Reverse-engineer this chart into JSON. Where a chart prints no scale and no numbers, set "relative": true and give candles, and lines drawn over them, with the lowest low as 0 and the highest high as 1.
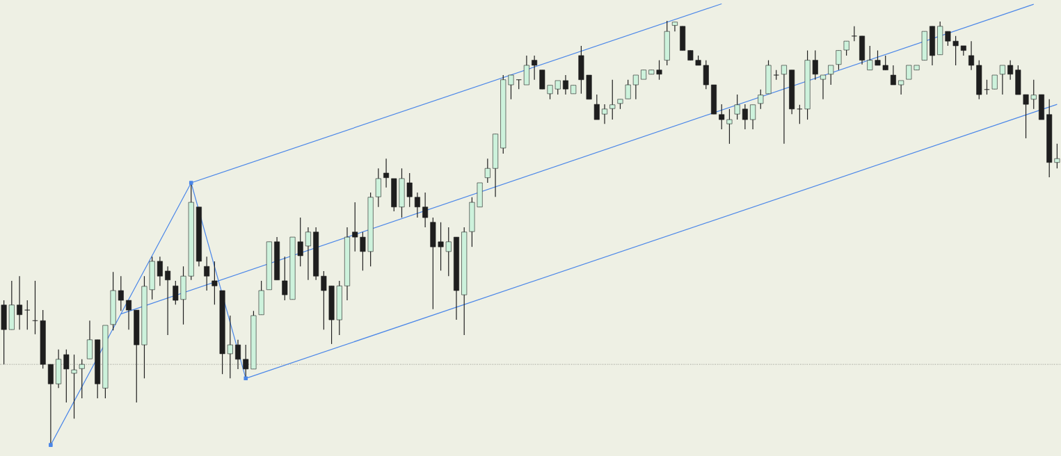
{
  "chart_data": {
    "type": "candlestick",
    "relative": true,
    "categories": [
      null,
      null,
      null,
      null,
      null,
      null,
      null,
      null,
      null,
      null,
      null,
      null,
      null,
      null,
      null,
      null,
      null,
      null,
      null,
      null,
      null,
      null,
      null,
      null,
      null,
      null,
      null,
      null,
      null,
      null,
      null,
      null,
      null,
      null,
      null,
      null,
      null,
      null,
      null,
      null,
      null,
      null,
      null,
      null,
      null,
      null,
      null,
      null,
      null,
      null,
      null,
      null,
      null,
      null,
      null,
      null,
      null,
      null,
      null,
      null,
      null,
      null,
      null,
      null,
      null,
      null,
      null,
      null,
      null,
      null,
      null,
      null,
      null,
      null,
      null,
      null,
      null,
      null,
      null,
      null,
      null,
      null,
      null,
      null,
      null,
      null,
      null,
      null,
      null,
      null,
      null,
      null,
      null,
      null,
      null,
      null,
      null,
      null,
      null,
      null,
      null,
      null,
      null,
      null,
      null,
      null,
      null,
      null,
      null,
      null,
      null,
      null,
      null,
      null,
      null,
      null,
      null,
      null,
      null,
      null,
      null,
      null,
      null,
      null,
      null,
      null,
      null,
      null,
      null,
      null,
      null,
      null,
      null,
      null,
      null,
      null
    ],
    "ohlc": [
      [
        0.33,
        0.341,
        0.19,
        0.272
      ],
      [
        0.272,
        0.387,
        0.272,
        0.33
      ],
      [
        0.33,
        0.398,
        0.272,
        0.307
      ],
      [
        0.318,
        0.341,
        0.272,
        0.318
      ],
      [
        0.293,
        0.387,
        0.261,
        0.293
      ],
      [
        0.293,
        0.318,
        0.18,
        0.19
      ],
      [
        0.19,
        0.19,
        0,
        0.144
      ],
      [
        0.144,
        0.225,
        0.134,
        0.202
      ],
      [
        0.213,
        0.225,
        0.1,
        0.179
      ],
      [
        0.169,
        0.213,
        0.062,
        0.177
      ],
      [
        0.18,
        0.202,
        0.11,
        0.19
      ],
      [
        0.203,
        0.293,
        0.203,
        0.248
      ],
      [
        0.248,
        0.248,
        0.11,
        0.144
      ],
      [
        0.134,
        0.282,
        0.11,
        0.282
      ],
      [
        0.284,
        0.408,
        0.27,
        0.364
      ],
      [
        0.364,
        0.398,
        0.316,
        0.341
      ],
      [
        0.341,
        0.341,
        0.272,
        0.318
      ],
      [
        0.318,
        0.318,
        0.1,
        0.236
      ],
      [
        0.236,
        0.398,
        0.157,
        0.374
      ],
      [
        0.366,
        0.444,
        0.343,
        0.433
      ],
      [
        0.433,
        0.444,
        0.375,
        0.398
      ],
      [
        0.41,
        0.421,
        0.259,
        0.389
      ],
      [
        0.375,
        0.387,
        0.331,
        0.341
      ],
      [
        0.343,
        0.421,
        0.284,
        0.398
      ],
      [
        0.398,
        0.618,
        0.389,
        0.572
      ],
      [
        0.561,
        0.561,
        0.421,
        0.433
      ],
      [
        0.421,
        0.444,
        0.364,
        0.398
      ],
      [
        0.387,
        0.433,
        0.331,
        0.375
      ],
      [
        0.364,
        0.364,
        0.167,
        0.215
      ],
      [
        0.215,
        0.305,
        0.157,
        0.236
      ],
      [
        0.236,
        0.248,
        0.179,
        0.202
      ],
      [
        0.202,
        0.236,
        0.157,
        0.179
      ],
      [
        0.179,
        0.316,
        0.179,
        0.305
      ],
      [
        0.307,
        0.387,
        0.307,
        0.364
      ],
      [
        0.366,
        0.479,
        0.366,
        0.479
      ],
      [
        0.479,
        0.49,
        0.389,
        0.389
      ],
      [
        0.387,
        0.444,
        0.341,
        0.354
      ],
      [
        0.343,
        0.49,
        0.343,
        0.49
      ],
      [
        0.479,
        0.536,
        0.421,
        0.446
      ],
      [
        0.469,
        0.513,
        0.389,
        0.502
      ],
      [
        0.502,
        0.513,
        0.389,
        0.398
      ],
      [
        0.398,
        0.41,
        0.272,
        0.364
      ],
      [
        0.375,
        0.375,
        0.238,
        0.295
      ],
      [
        0.295,
        0.387,
        0.259,
        0.375
      ],
      [
        0.375,
        0.513,
        0.341,
        0.49
      ],
      [
        0.502,
        0.572,
        0.456,
        0.49
      ],
      [
        0.49,
        0.502,
        0.411,
        0.456
      ],
      [
        0.456,
        0.595,
        0.421,
        0.584
      ],
      [
        0.585,
        0.652,
        0.561,
        0.628
      ],
      [
        0.641,
        0.675,
        0.607,
        0.63
      ],
      [
        0.628,
        0.628,
        0.551,
        0.561
      ],
      [
        0.561,
        0.652,
        0.536,
        0.628
      ],
      [
        0.618,
        0.641,
        0.561,
        0.585
      ],
      [
        0.584,
        0.595,
        0.536,
        0.561
      ],
      [
        0.561,
        0.595,
        0.513,
        0.536
      ],
      [
        0.525,
        0.536,
        0.32,
        0.467
      ],
      [
        0.479,
        0.525,
        0.411,
        0.467
      ],
      [
        0.456,
        0.513,
        0.398,
        0.479
      ],
      [
        0.49,
        0.49,
        0.295,
        0.364
      ],
      [
        0.354,
        0.513,
        0.259,
        0.502
      ],
      [
        0.503,
        0.584,
        0.467,
        0.572
      ],
      [
        0.561,
        0.618,
        0.561,
        0.618
      ],
      [
        0.63,
        0.675,
        0.618,
        0.652
      ],
      [
        0.652,
        0.733,
        0.585,
        0.733
      ],
      [
        0.7,
        0.872,
        0.687,
        0.861
      ],
      [
        0.849,
        0.872,
        0.815,
        0.872
      ],
      [
        0.861,
        0.861,
        0.839,
        0.861
      ],
      [
        0.849,
        0.918,
        0.849,
        0.895
      ],
      [
        0.907,
        0.918,
        0.861,
        0.895
      ],
      [
        0.884,
        0.884,
        0.839,
        0.839
      ],
      [
        0.828,
        0.848,
        0.815,
        0.848
      ],
      [
        0.839,
        0.859,
        0.826,
        0.859
      ],
      [
        0.859,
        0.872,
        0.826,
        0.839
      ],
      [
        0.828,
        0.848,
        0.828,
        0.848
      ],
      [
        0.918,
        0.941,
        0.828,
        0.861
      ],
      [
        0.872,
        0.872,
        0.815,
        0.815
      ],
      [
        0.803,
        0.826,
        0.767,
        0.767
      ],
      [
        0.78,
        0.803,
        0.757,
        0.792
      ],
      [
        0.793,
        0.861,
        0.767,
        0.802
      ],
      [
        0.805,
        0.815,
        0.792,
        0.815
      ],
      [
        0.816,
        0.861,
        0.816,
        0.849
      ],
      [
        0.849,
        0.872,
        0.815,
        0.872
      ],
      [
        0.862,
        0.884,
        0.862,
        0.884
      ],
      [
        0.874,
        0.884,
        0.874,
        0.884
      ],
      [
        0.884,
        0.907,
        0.861,
        0.874
      ],
      [
        0.907,
        1.0,
        0.895,
        0.975
      ],
      [
        0.989,
        0.997,
        0.975,
        0.997
      ],
      [
        0.987,
        0.987,
        0.93,
        0.93
      ],
      [
        0.93,
        0.93,
        0.907,
        0.907
      ],
      [
        0.907,
        0.918,
        0.895,
        0.895
      ],
      [
        0.895,
        0.907,
        0.839,
        0.849
      ],
      [
        0.849,
        0.849,
        0.78,
        0.78
      ],
      [
        0.779,
        0.803,
        0.744,
        0.767
      ],
      [
        0.757,
        0.792,
        0.71,
        0.767
      ],
      [
        0.78,
        0.826,
        0.767,
        0.802
      ],
      [
        0.792,
        0.803,
        0.744,
        0.767
      ],
      [
        0.767,
        0.802,
        0.744,
        0.802
      ],
      [
        0.805,
        0.838,
        0.792,
        0.825
      ],
      [
        0.828,
        0.907,
        0.828,
        0.895
      ],
      [
        0.872,
        0.884,
        0.861,
        0.872
      ],
      [
        0.874,
        0.895,
        0.71,
        0.895
      ],
      [
        0.884,
        0.884,
        0.78,
        0.792
      ],
      [
        0.792,
        0.802,
        0.757,
        0.792
      ],
      [
        0.792,
        0.93,
        0.767,
        0.907
      ],
      [
        0.907,
        0.93,
        0.861,
        0.874
      ],
      [
        0.862,
        0.872,
        0.815,
        0.872
      ],
      [
        0.874,
        0.895,
        0.849,
        0.895
      ],
      [
        0.897,
        0.93,
        0.884,
        0.93
      ],
      [
        0.931,
        0.952,
        0.918,
        0.952
      ],
      [
        0.964,
        0.987,
        0.952,
        0.964
      ],
      [
        0.964,
        0.964,
        0.897,
        0.907
      ],
      [
        0.884,
        0.941,
        0.884,
        0.907
      ],
      [
        0.907,
        0.93,
        0.895,
        0.895
      ],
      [
        0.895,
        0.918,
        0.884,
        0.884
      ],
      [
        0.872,
        0.895,
        0.849,
        0.849
      ],
      [
        0.849,
        0.859,
        0.826,
        0.859
      ],
      [
        0.862,
        0.895,
        0.862,
        0.895
      ],
      [
        0.884,
        0.895,
        0.884,
        0.895
      ],
      [
        0.907,
        0.975,
        0.907,
        0.975
      ],
      [
        0.987,
        0.987,
        0.895,
        0.918
      ],
      [
        0.92,
        0.998,
        0.92,
        0.987
      ],
      [
        0.975,
        0.975,
        0.941,
        0.952
      ],
      [
        0.952,
        0.964,
        0.895,
        0.941
      ],
      [
        0.941,
        0.941,
        0.918,
        0.93
      ],
      [
        0.918,
        0.952,
        0.884,
        0.895
      ],
      [
        0.895,
        0.907,
        0.815,
        0.826
      ],
      [
        0.838,
        0.861,
        0.826,
        0.838
      ],
      [
        0.839,
        0.872,
        0.839,
        0.872
      ],
      [
        0.874,
        0.895,
        0.826,
        0.895
      ],
      [
        0.895,
        0.907,
        0.861,
        0.874
      ],
      [
        0.884,
        0.895,
        0.826,
        0.826
      ],
      [
        0.826,
        0.826,
        0.723,
        0.803
      ],
      [
        0.815,
        0.861,
        0.792,
        0.825
      ],
      [
        0.826,
        0.826,
        0.767,
        0.767
      ],
      [
        0.779,
        0.815,
        0.631,
        0.666
      ],
      [
        0.666,
        0.71,
        0.652,
        0.675
      ]
    ],
    "colors": [
      "#1e1e1e",
      "#cdf2dc",
      "#1e1e1e",
      "#1e1e1e",
      "#1e1e1e",
      "#1e1e1e",
      "#1e1e1e",
      "#cdf2dc",
      "#1e1e1e",
      "#cdf2dc",
      "#cdf2dc",
      "#cdf2dc",
      "#1e1e1e",
      "#cdf2dc",
      "#cdf2dc",
      "#1e1e1e",
      "#1e1e1e",
      "#1e1e1e",
      "#cdf2dc",
      "#cdf2dc",
      "#1e1e1e",
      "#1e1e1e",
      "#1e1e1e",
      "#cdf2dc",
      "#cdf2dc",
      "#1e1e1e",
      "#1e1e1e",
      "#1e1e1e",
      "#1e1e1e",
      "#cdf2dc",
      "#1e1e1e",
      "#1e1e1e",
      "#cdf2dc",
      "#cdf2dc",
      "#cdf2dc",
      "#1e1e1e",
      "#1e1e1e",
      "#cdf2dc",
      "#1e1e1e",
      "#cdf2dc",
      "#1e1e1e",
      "#1e1e1e",
      "#1e1e1e",
      "#cdf2dc",
      "#cdf2dc",
      "#1e1e1e",
      "#1e1e1e",
      "#cdf2dc",
      "#cdf2dc",
      "#1e1e1e",
      "#1e1e1e",
      "#cdf2dc",
      "#1e1e1e",
      "#1e1e1e",
      "#1e1e1e",
      "#1e1e1e",
      "#1e1e1e",
      "#cdf2dc",
      "#1e1e1e",
      "#cdf2dc",
      "#cdf2dc",
      "#cdf2dc",
      "#cdf2dc",
      "#cdf2dc",
      "#cdf2dc",
      "#cdf2dc",
      "#1e1e1e",
      "#cdf2dc",
      "#1e1e1e",
      "#1e1e1e",
      "#cdf2dc",
      "#cdf2dc",
      "#1e1e1e",
      "#cdf2dc",
      "#1e1e1e",
      "#1e1e1e",
      "#1e1e1e",
      "#cdf2dc",
      "#cdf2dc",
      "#cdf2dc",
      "#cdf2dc",
      "#cdf2dc",
      "#cdf2dc",
      "#cdf2dc",
      "#1e1e1e",
      "#cdf2dc",
      "#cdf2dc",
      "#1e1e1e",
      "#1e1e1e",
      "#1e1e1e",
      "#1e1e1e",
      "#1e1e1e",
      "#1e1e1e",
      "#cdf2dc",
      "#cdf2dc",
      "#1e1e1e",
      "#cdf2dc",
      "#cdf2dc",
      "#cdf2dc",
      "#1e1e1e",
      "#cdf2dc",
      "#1e1e1e",
      "#1e1e1e",
      "#cdf2dc",
      "#1e1e1e",
      "#cdf2dc",
      "#cdf2dc",
      "#cdf2dc",
      "#cdf2dc",
      "#1e1e1e",
      "#1e1e1e",
      "#cdf2dc",
      "#1e1e1e",
      "#1e1e1e",
      "#1e1e1e",
      "#cdf2dc",
      "#cdf2dc",
      "#cdf2dc",
      "#cdf2dc",
      "#1e1e1e",
      "#cdf2dc",
      "#1e1e1e",
      "#1e1e1e",
      "#1e1e1e",
      "#1e1e1e",
      "#1e1e1e",
      "#1e1e1e",
      "#cdf2dc",
      "#cdf2dc",
      "#1e1e1e",
      "#1e1e1e",
      "#1e1e1e",
      "#cdf2dc",
      "#1e1e1e",
      "#1e1e1e",
      "#cdf2dc"
    ],
    "ref_lines": [
      {
        "axis": "y",
        "value": 0.19,
        "color": "#000000",
        "line_style": "dotted"
      }
    ],
    "series": [
      {
        "type": "line",
        "values": [
          null,
          null,
          null,
          null,
          null,
          null,
          0,
          null,
          null,
          null,
          null,
          null,
          null,
          null,
          null,
          null,
          null,
          null,
          null,
          null,
          null,
          null,
          null,
          null,
          0.618,
          null,
          null,
          null,
          null,
          null,
          null,
          0.157,
          null,
          null,
          null,
          null,
          null,
          null,
          null,
          null,
          null,
          null,
          null,
          null,
          null,
          null,
          null,
          null,
          null,
          null,
          null,
          null,
          null,
          null,
          null,
          null,
          null,
          null,
          null,
          null,
          null,
          null,
          null,
          null,
          null,
          null,
          null,
          null,
          null,
          null,
          null,
          null,
          null,
          null,
          null,
          null,
          null,
          null,
          null,
          null,
          null,
          null,
          null,
          null,
          null,
          null,
          null,
          null,
          null,
          null,
          null,
          null,
          null,
          null,
          null,
          null,
          null,
          null,
          null,
          null,
          null,
          null,
          null,
          null,
          null,
          null,
          null,
          null,
          null,
          null,
          null,
          null,
          null,
          null,
          null,
          null,
          null,
          null,
          null,
          null,
          null,
          null,
          null,
          null,
          null,
          null,
          null,
          null,
          null,
          null,
          null,
          null,
          null,
          null,
          null,
          null
        ],
        "color": "#4a86e8",
        "marker": "square",
        "line_style": "solid"
      },
      {
        "type": "line",
        "values": [
          null,
          null,
          null,
          null,
          null,
          null,
          null,
          null,
          null,
          null,
          null,
          null,
          null,
          null,
          null,
          null,
          null,
          null,
          null,
          null,
          null,
          null,
          null,
          null,
          0.618,
          null,
          null,
          null,
          null,
          null,
          null,
          null,
          null,
          null,
          null,
          null,
          null,
          null,
          null,
          null,
          null,
          null,
          null,
          null,
          null,
          null,
          null,
          null,
          null,
          null,
          null,
          null,
          null,
          null,
          null,
          null,
          null,
          null,
          null,
          null,
          null,
          null,
          null,
          null,
          null,
          null,
          null,
          null,
          null,
          null,
          null,
          null,
          null,
          null,
          null,
          null,
          null,
          null,
          null,
          null,
          null,
          null,
          null,
          null,
          null,
          null,
          null,
          null,
          null,
          null,
          null,
          null,
          1.04,
          null,
          null,
          null,
          null,
          null,
          null,
          null,
          null,
          null,
          null,
          null,
          null,
          null,
          null,
          null,
          null,
          null,
          null,
          null,
          null,
          null,
          null,
          null,
          null,
          null,
          null,
          null,
          null,
          null,
          null,
          null,
          null,
          null,
          null,
          null,
          null,
          null,
          null,
          null,
          null,
          null,
          null,
          null
        ],
        "color": "#4a86e8",
        "marker": "none",
        "line_style": "solid"
      },
      {
        "type": "line",
        "values": [
          null,
          null,
          null,
          null,
          null,
          null,
          null,
          null,
          null,
          null,
          null,
          null,
          null,
          null,
          null,
          0.309,
          null,
          null,
          null,
          null,
          null,
          null,
          null,
          null,
          null,
          null,
          null,
          null,
          null,
          null,
          null,
          null,
          null,
          null,
          null,
          null,
          null,
          null,
          null,
          null,
          null,
          null,
          null,
          null,
          null,
          null,
          null,
          null,
          null,
          null,
          null,
          null,
          null,
          null,
          null,
          null,
          null,
          null,
          null,
          null,
          null,
          null,
          null,
          null,
          null,
          null,
          null,
          null,
          null,
          null,
          null,
          null,
          null,
          null,
          null,
          null,
          null,
          null,
          null,
          null,
          null,
          null,
          null,
          null,
          null,
          null,
          null,
          null,
          null,
          null,
          null,
          null,
          null,
          null,
          null,
          null,
          null,
          null,
          null,
          null,
          null,
          null,
          null,
          null,
          null,
          null,
          null,
          null,
          null,
          null,
          null,
          null,
          null,
          null,
          null,
          null,
          null,
          null,
          null,
          null,
          null,
          null,
          null,
          null,
          null,
          null,
          null,
          null,
          null,
          null,
          null,
          null,
          1.039,
          null,
          null,
          null
        ],
        "color": "#4a86e8",
        "marker": "none",
        "line_style": "solid"
      },
      {
        "type": "line",
        "values": [
          null,
          null,
          null,
          null,
          null,
          null,
          null,
          null,
          null,
          null,
          null,
          null,
          null,
          null,
          null,
          null,
          null,
          null,
          null,
          null,
          null,
          null,
          null,
          null,
          null,
          null,
          null,
          null,
          null,
          null,
          null,
          0.157,
          null,
          null,
          null,
          null,
          null,
          null,
          null,
          null,
          null,
          null,
          null,
          null,
          null,
          null,
          null,
          null,
          null,
          null,
          null,
          null,
          null,
          null,
          null,
          null,
          null,
          null,
          null,
          null,
          null,
          null,
          null,
          null,
          null,
          null,
          null,
          null,
          null,
          null,
          null,
          null,
          null,
          null,
          null,
          null,
          null,
          null,
          null,
          null,
          null,
          null,
          null,
          null,
          null,
          null,
          null,
          null,
          null,
          null,
          null,
          null,
          null,
          null,
          null,
          null,
          null,
          null,
          null,
          null,
          null,
          null,
          null,
          null,
          null,
          null,
          null,
          null,
          null,
          null,
          null,
          null,
          null,
          null,
          null,
          null,
          null,
          null,
          null,
          null,
          null,
          null,
          null,
          null,
          null,
          null,
          null,
          null,
          null,
          null,
          null,
          null,
          null,
          null,
          null,
          0.803
        ],
        "color": "#4a86e8",
        "marker": "none",
        "line_style": "solid"
      }
    ]
  }
}
